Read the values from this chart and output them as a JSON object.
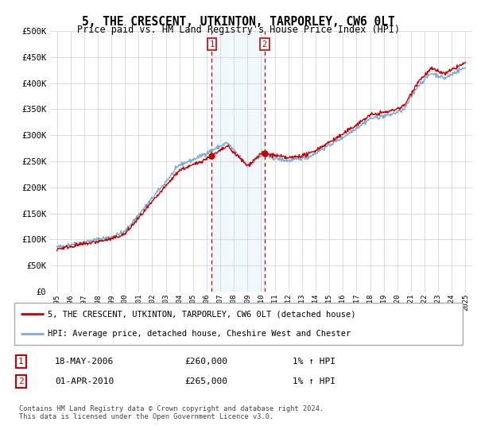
{
  "title": "5, THE CRESCENT, UTKINTON, TARPORLEY, CW6 0LT",
  "subtitle": "Price paid vs. HM Land Registry's House Price Index (HPI)",
  "legend_line1": "5, THE CRESCENT, UTKINTON, TARPORLEY, CW6 0LT (detached house)",
  "legend_line2": "HPI: Average price, detached house, Cheshire West and Chester",
  "transaction1_date": "18-MAY-2006",
  "transaction1_price": "£260,000",
  "transaction1_hpi": "1% ↑ HPI",
  "transaction2_date": "01-APR-2010",
  "transaction2_price": "£265,000",
  "transaction2_hpi": "1% ↑ HPI",
  "footer": "Contains HM Land Registry data © Crown copyright and database right 2024.\nThis data is licensed under the Open Government Licence v3.0.",
  "red_line_color": "#cc0000",
  "blue_line_color": "#7aadd4",
  "background_color": "#ffffff",
  "plot_bg_color": "#ffffff",
  "grid_color": "#cccccc",
  "highlight_color": "#ddeef8",
  "marker1_x_year": 2006.38,
  "marker2_x_year": 2010.25,
  "ylim": [
    0,
    500000
  ],
  "xlim_start": 1994.5,
  "xlim_end": 2025.5,
  "yticks": [
    0,
    50000,
    100000,
    150000,
    200000,
    250000,
    300000,
    350000,
    400000,
    450000,
    500000
  ],
  "xticks": [
    1995,
    1996,
    1997,
    1998,
    1999,
    2000,
    2001,
    2002,
    2003,
    2004,
    2005,
    2006,
    2007,
    2008,
    2009,
    2010,
    2011,
    2012,
    2013,
    2014,
    2015,
    2016,
    2017,
    2018,
    2019,
    2020,
    2021,
    2022,
    2023,
    2024,
    2025
  ]
}
